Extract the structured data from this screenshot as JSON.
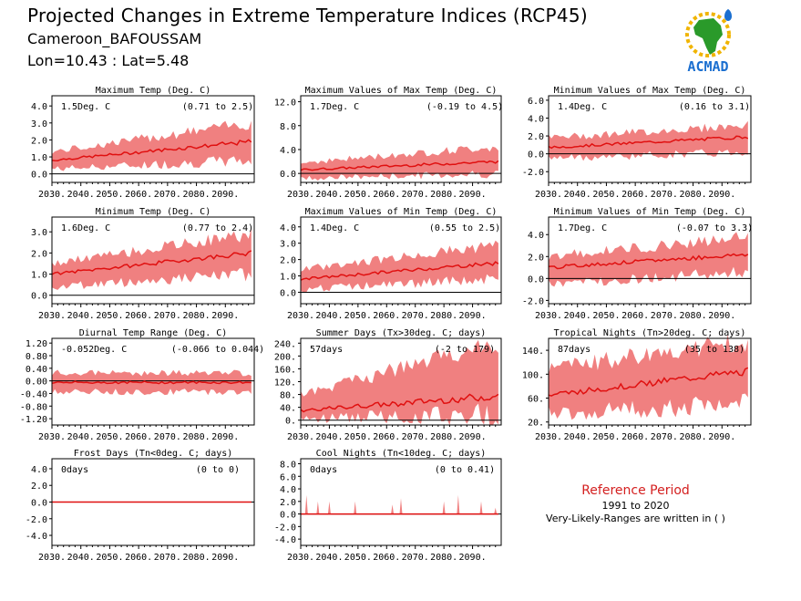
{
  "header": {
    "title": "Projected Changes in Extreme Temperature Indices (RCP45)",
    "location": "Cameroon_BAFOUSSAM",
    "coords": "Lon=10.43 : Lat=5.48"
  },
  "logo": {
    "text": "ACMAD",
    "icon": "africa-map-logo"
  },
  "reference": {
    "title": "Reference Period",
    "period": "1991 to 2020",
    "note": "Very-Likely-Ranges are written in ( )"
  },
  "colors": {
    "band": "#f08080",
    "line": "#e01010",
    "zero": "#000000"
  },
  "chart_data": [
    {
      "type": "area",
      "title": "Maximum Temp (Deg. C)",
      "value": "1.5Deg. C",
      "range": "(0.71 to 2.5)",
      "x": [
        2030,
        2099
      ],
      "ylim": [
        -0.5,
        4.6
      ],
      "yticks": [
        "0.0",
        "1.0",
        "2.0",
        "3.0",
        "4.0"
      ],
      "ytick_values": [
        0,
        1,
        2,
        3,
        4
      ],
      "series": [
        {
          "median_start": 0.8,
          "median_end": 1.9,
          "low_start": 0.3,
          "low_end": 0.8,
          "high_start": 1.3,
          "high_end": 3.0
        }
      ]
    },
    {
      "type": "area",
      "title": "Maximum Values of Max Temp (Deg. C)",
      "value": "1.7Deg. C",
      "range": "(-0.19 to 4.5)",
      "x": [
        2030,
        2099
      ],
      "ylim": [
        -1.5,
        13
      ],
      "yticks": [
        "0.0",
        "4.0",
        "8.0",
        "12.0"
      ],
      "ytick_values": [
        0,
        4,
        8,
        12
      ],
      "series": [
        {
          "median_start": 0.6,
          "median_end": 2.0,
          "low_start": -0.8,
          "low_end": 0.0,
          "high_start": 1.8,
          "high_end": 4.5
        }
      ]
    },
    {
      "type": "area",
      "title": "Minimum Values of Max Temp (Deg. C)",
      "value": "1.4Deg. C",
      "range": "(0.16 to 3.1)",
      "x": [
        2030,
        2099
      ],
      "ylim": [
        -3.2,
        6.5
      ],
      "yticks": [
        "-2.0",
        "0.0",
        "2.0",
        "4.0",
        "6.0"
      ],
      "ytick_values": [
        -2,
        0,
        2,
        4,
        6
      ],
      "series": [
        {
          "median_start": 0.7,
          "median_end": 1.9,
          "low_start": -0.5,
          "low_end": 0.2,
          "high_start": 1.8,
          "high_end": 3.2
        }
      ]
    },
    {
      "type": "area",
      "title": "Minimum Temp (Deg. C)",
      "value": "1.6Deg. C",
      "range": "(0.77 to 2.4)",
      "x": [
        2030,
        2099
      ],
      "ylim": [
        -0.4,
        3.7
      ],
      "yticks": [
        "0.0",
        "1.0",
        "2.0",
        "3.0"
      ],
      "ytick_values": [
        0,
        1,
        2,
        3
      ],
      "series": [
        {
          "median_start": 1.0,
          "median_end": 2.0,
          "low_start": 0.4,
          "low_end": 1.0,
          "high_start": 1.5,
          "high_end": 2.9
        }
      ]
    },
    {
      "type": "area",
      "title": "Maximum Values of Min Temp (Deg. C)",
      "value": "1.4Deg. C",
      "range": "(0.55 to 2.5)",
      "x": [
        2030,
        2099
      ],
      "ylim": [
        -0.7,
        4.6
      ],
      "yticks": [
        "0.0",
        "1.0",
        "2.0",
        "3.0",
        "4.0"
      ],
      "ytick_values": [
        0,
        1,
        2,
        3,
        4
      ],
      "series": [
        {
          "median_start": 0.8,
          "median_end": 1.8,
          "low_start": 0.2,
          "low_end": 0.8,
          "high_start": 1.4,
          "high_end": 2.9
        }
      ]
    },
    {
      "type": "area",
      "title": "Minimum Values of Min Temp (Deg. C)",
      "value": "1.7Deg. C",
      "range": "(-0.07 to 3.3)",
      "x": [
        2030,
        2099
      ],
      "ylim": [
        -2.3,
        5.6
      ],
      "yticks": [
        "-2.0",
        "0.0",
        "2.0",
        "4.0"
      ],
      "ytick_values": [
        -2,
        0,
        2,
        4
      ],
      "series": [
        {
          "median_start": 1.0,
          "median_end": 2.2,
          "low_start": -0.5,
          "low_end": 0.6,
          "high_start": 2.0,
          "high_end": 3.8
        }
      ]
    },
    {
      "type": "area",
      "title": "Diurnal Temp Range (Deg. C)",
      "value": "-0.052Deg. C",
      "range": "(-0.066 to 0.044)",
      "x": [
        2030,
        2099
      ],
      "ylim": [
        -1.4,
        1.35
      ],
      "yticks": [
        "-1.20",
        "-0.80",
        "-0.40",
        "0.00",
        "0.40",
        "0.80",
        "1.20"
      ],
      "ytick_values": [
        -1.2,
        -0.8,
        -0.4,
        0,
        0.4,
        0.8,
        1.2
      ],
      "series": [
        {
          "median_start": -0.05,
          "median_end": -0.05,
          "low_start": -0.35,
          "low_end": -0.35,
          "high_start": 0.25,
          "high_end": 0.25
        }
      ]
    },
    {
      "type": "area",
      "title": "Summer Days (Tx>30deg. C; days)",
      "value": "57days",
      "range": "(-2 to 179)",
      "x": [
        2030,
        2099
      ],
      "ylim": [
        -15,
        255
      ],
      "yticks": [
        "0.",
        "40.",
        "80.",
        "120.",
        "160.",
        "200.",
        "240."
      ],
      "ytick_values": [
        0,
        40,
        80,
        120,
        160,
        200,
        240
      ],
      "series": [
        {
          "median_start": 30,
          "median_end": 75,
          "low_start": 5,
          "low_end": 20,
          "high_start": 80,
          "high_end": 240
        }
      ]
    },
    {
      "type": "area",
      "title": "Tropical Nights (Tn>20deg. C; days)",
      "value": "87days",
      "range": "(35 to 138)",
      "x": [
        2030,
        2099
      ],
      "ylim": [
        15,
        160
      ],
      "yticks": [
        "20.",
        "60.",
        "100.",
        "140."
      ],
      "ytick_values": [
        20,
        60,
        100,
        140
      ],
      "series": [
        {
          "median_start": 65,
          "median_end": 105,
          "low_start": 35,
          "low_end": 50,
          "high_start": 110,
          "high_end": 155
        }
      ]
    },
    {
      "type": "area",
      "title": "Frost Days (Tn<0deg. C; days)",
      "value": "0days",
      "range": "(0 to 0)",
      "x": [
        2030,
        2099
      ],
      "ylim": [
        -5.2,
        5.2
      ],
      "yticks": [
        "-4.0",
        "-2.0",
        "0.0",
        "2.0",
        "4.0"
      ],
      "ytick_values": [
        -4,
        -2,
        0,
        2,
        4
      ],
      "series": [
        {
          "median_start": 0,
          "median_end": 0,
          "low_start": 0,
          "low_end": 0,
          "high_start": 0,
          "high_end": 0
        }
      ]
    },
    {
      "type": "area",
      "title": "Cool Nights (Tn<10deg. C; days)",
      "value": "0days",
      "range": "(0 to 0.41)",
      "x": [
        2030,
        2099
      ],
      "ylim": [
        -5,
        8.8
      ],
      "yticks": [
        "-4.0",
        "-2.0",
        "0.0",
        "2.0",
        "4.0",
        "6.0",
        "8.0"
      ],
      "ytick_values": [
        -4,
        -2,
        0,
        2,
        4,
        6,
        8
      ],
      "series": [
        {
          "median_start": 0,
          "median_end": 0,
          "low_start": 0,
          "low_end": 0,
          "high_start": 0,
          "high_end": 0
        }
      ]
    }
  ],
  "xticks": [
    "2030.",
    "2040.",
    "2050.",
    "2060.",
    "2070.",
    "2080.",
    "2090."
  ]
}
